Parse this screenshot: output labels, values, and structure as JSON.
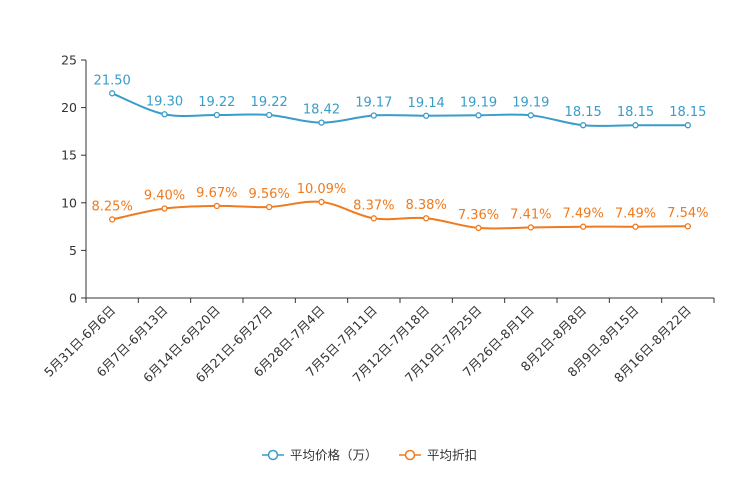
{
  "chart_data": {
    "type": "line",
    "categories": [
      "5月31日-6月6日",
      "6月7日-6月13日",
      "6月14日-6月20日",
      "6月21日-6月27日",
      "6月28日-7月4日",
      "7月5日-7月11日",
      "7月12日-7月18日",
      "7月19日-7月25日",
      "7月26日-8月1日",
      "8月2日-8月8日",
      "8月9日-8月15日",
      "8月16日-8月22日"
    ],
    "ylim": [
      0,
      25
    ],
    "yticks": [
      0,
      5,
      10,
      15,
      20,
      25
    ],
    "series": [
      {
        "name": "平均价格（万）",
        "color": "#3a9cc9",
        "values": [
          21.5,
          19.3,
          19.22,
          19.22,
          18.42,
          19.17,
          19.14,
          19.19,
          19.19,
          18.15,
          18.15,
          18.15
        ],
        "labels": [
          "21.50",
          "19.30",
          "19.22",
          "19.22",
          "18.42",
          "19.17",
          "19.14",
          "19.19",
          "19.19",
          "18.15",
          "18.15",
          "18.15"
        ]
      },
      {
        "name": "平均折扣",
        "color": "#f07a1e",
        "values": [
          8.25,
          9.4,
          9.67,
          9.56,
          10.09,
          8.37,
          8.38,
          7.36,
          7.41,
          7.49,
          7.49,
          7.54
        ],
        "labels": [
          "8.25%",
          "9.40%",
          "9.67%",
          "9.56%",
          "10.09%",
          "8.37%",
          "8.38%",
          "7.36%",
          "7.41%",
          "7.49%",
          "7.49%",
          "7.54%"
        ]
      }
    ],
    "legend_position": "bottom-center",
    "grid": false
  }
}
